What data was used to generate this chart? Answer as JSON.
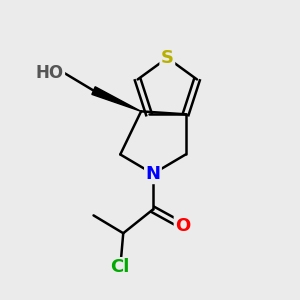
{
  "background_color": "#ebebeb",
  "atom_colors": {
    "S": "#b8b000",
    "N": "#0000ff",
    "O": "#ff0000",
    "Cl": "#00aa00",
    "C": "#000000",
    "H": "#555555"
  },
  "bond_color": "#000000",
  "bond_width": 1.8,
  "font_size_atoms": 13
}
